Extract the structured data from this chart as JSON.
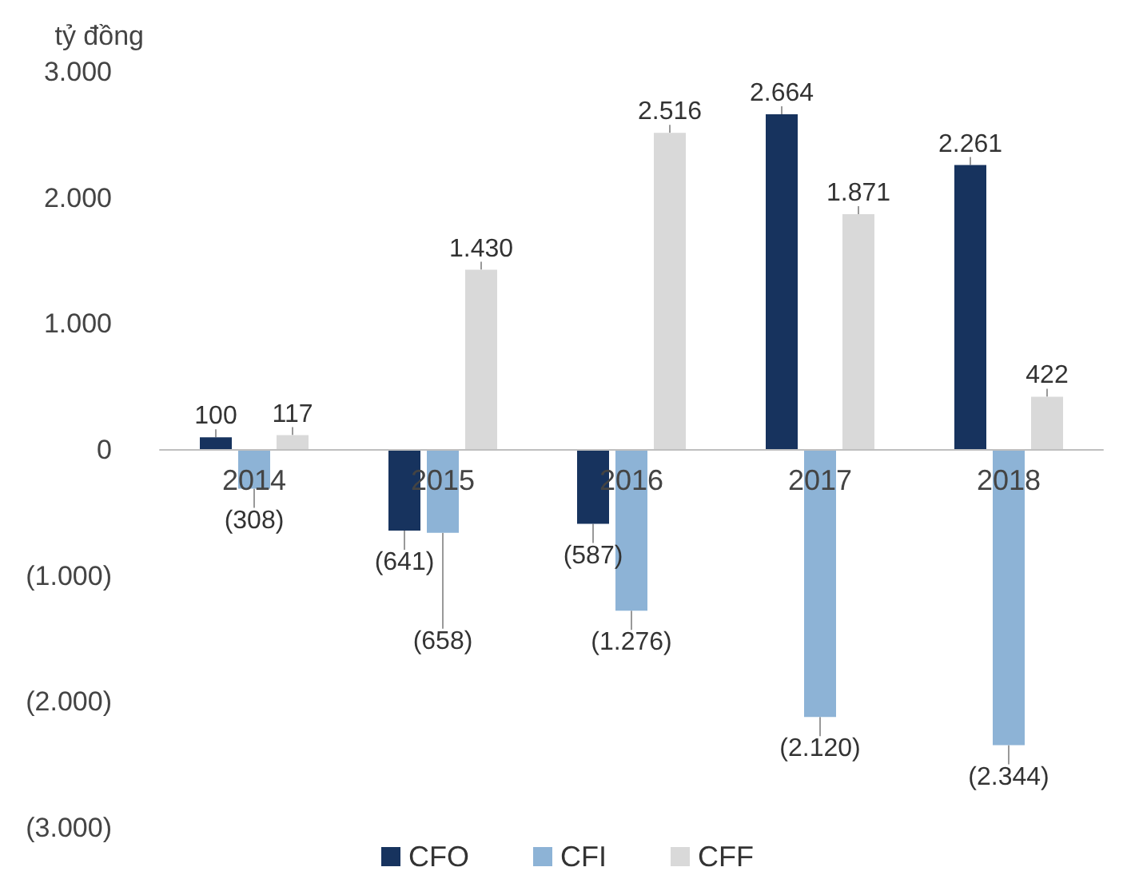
{
  "chart_data": {
    "type": "bar",
    "ylabel": "tỷ đồng",
    "categories": [
      "2014",
      "2015",
      "2016",
      "2017",
      "2018"
    ],
    "series": [
      {
        "name": "CFO",
        "color": "#17335e",
        "values": [
          100,
          -641,
          -587,
          2664,
          2261
        ],
        "value_labels": [
          "100",
          "(641)",
          "(587)",
          "2.664",
          "2.261"
        ]
      },
      {
        "name": "CFI",
        "color": "#8db3d6",
        "values": [
          -308,
          -658,
          -1276,
          -2120,
          -2344
        ],
        "value_labels": [
          "(308)",
          "(658)",
          "(1.276)",
          "(2.120)",
          "(2.344)"
        ]
      },
      {
        "name": "CFF",
        "color": "#d9d9d9",
        "values": [
          117,
          1430,
          2516,
          1871,
          422
        ],
        "value_labels": [
          "117",
          "1.430",
          "2.516",
          "1.871",
          "422"
        ]
      }
    ],
    "ylim": [
      -3000,
      3000
    ],
    "yticks": [
      {
        "value": -3000,
        "label": "(3.000)"
      },
      {
        "value": -2000,
        "label": "(2.000)"
      },
      {
        "value": -1000,
        "label": "(1.000)"
      },
      {
        "value": 0,
        "label": "0"
      },
      {
        "value": 1000,
        "label": "1.000"
      },
      {
        "value": 2000,
        "label": "2.000"
      },
      {
        "value": 3000,
        "label": "3.000"
      }
    ],
    "grid": false,
    "legend": "bottom"
  }
}
